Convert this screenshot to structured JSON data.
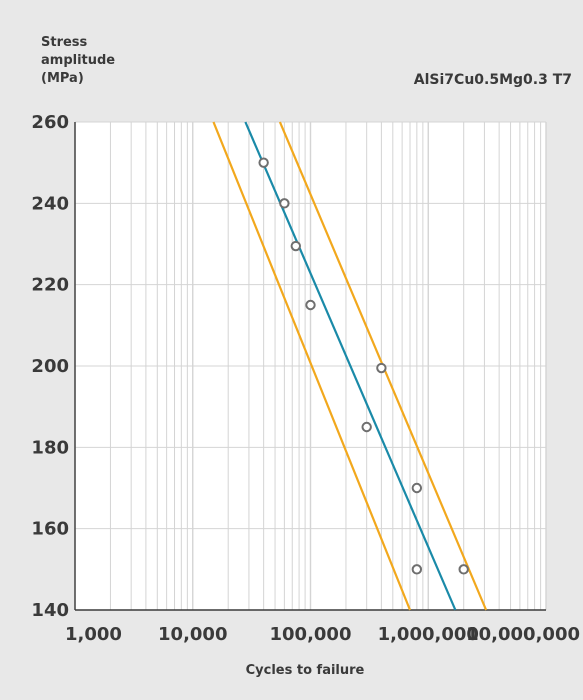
{
  "chart_data": {
    "type": "scatter",
    "title": "AlSi7Cu0.5Mg0.3 T7",
    "ylabel_lines": [
      "Stress",
      "amplitude",
      "(MPa)"
    ],
    "xlabel": "Cycles to failure",
    "x_scale": "log",
    "xlim": [
      1000,
      10000000
    ],
    "ylim": [
      140,
      260
    ],
    "yticks": [
      140,
      160,
      180,
      200,
      220,
      240,
      260
    ],
    "ytick_labels": [
      "140",
      "160",
      "180",
      "200",
      "220",
      "240",
      "260"
    ],
    "xticks": [
      1000,
      10000,
      100000,
      1000000,
      10000000
    ],
    "xtick_labels": [
      "1,000",
      "10,000",
      "100,000",
      "1,000,000",
      "10,000,000"
    ],
    "grid": true,
    "points": {
      "x": [
        40000,
        60000,
        75000,
        100000,
        300000,
        400000,
        800000,
        800000,
        2000000
      ],
      "y": [
        250,
        240,
        229.5,
        215,
        185,
        199.5,
        170,
        150,
        150
      ]
    },
    "lines": [
      {
        "role": "mean-fit",
        "color": "#1a8aa8",
        "x": [
          28000,
          1700000
        ],
        "y": [
          260,
          140
        ]
      },
      {
        "role": "lower-bound",
        "color": "#f2a81d",
        "x": [
          15000,
          700000
        ],
        "y": [
          260,
          140
        ]
      },
      {
        "role": "upper-bound",
        "color": "#f2a81d",
        "x": [
          55000,
          3100000
        ],
        "y": [
          260,
          140
        ]
      }
    ]
  }
}
